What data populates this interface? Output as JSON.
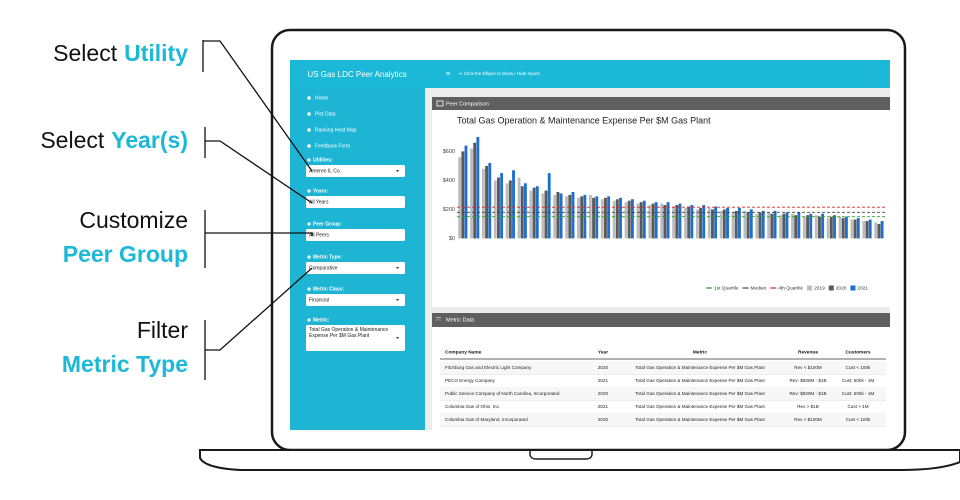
{
  "annotations": [
    {
      "label": "Select",
      "highlight": "Utility"
    },
    {
      "label": "Select",
      "highlight": "Year(s)"
    },
    {
      "label": "Customize",
      "highlight": "Peer Group"
    },
    {
      "label": "Filter",
      "highlight": "Metric Type"
    }
  ],
  "app": {
    "title": "US Gas LDC Peer Analytics",
    "menu_icon": "≡",
    "hint": "⇐ Click the Ellipse to Show / Hide Inputs",
    "nav": [
      "Home",
      "Plot Data",
      "Ranking Heat Map",
      "Feedback Form"
    ],
    "filters": [
      {
        "label": "Utilities:",
        "value": "Ameren IL Co."
      },
      {
        "label": "Years:",
        "value": "All Years"
      },
      {
        "label": "Peer Group:",
        "value": "All Peers"
      },
      {
        "label": "Metric Type:",
        "value": "Comparative"
      },
      {
        "label": "Metric Class:",
        "value": "Financial"
      },
      {
        "label": "Metric:",
        "value": "Total Gas Operation & Maintenance Expense Per $M Gas Plant"
      }
    ],
    "chart_panel_title": "Peer Comparison",
    "table_panel_title": "Metric Data"
  },
  "chart_data": {
    "type": "bar",
    "title": "Total Gas Operation & Maintenance Expense Per $M Gas Plant",
    "categories": [
      null,
      null,
      null,
      null,
      null,
      null,
      null,
      null,
      null,
      null,
      null,
      null,
      null,
      null,
      null,
      null,
      null,
      null,
      null,
      null,
      null,
      null,
      null,
      null,
      null,
      null,
      null,
      null,
      null,
      null,
      null,
      null,
      null,
      null,
      null,
      null
    ],
    "series": [
      {
        "name": "2019",
        "color": "#bdbdbd",
        "values": [
          560,
          620,
          480,
          400,
          380,
          420,
          330,
          310,
          300,
          290,
          280,
          300,
          270,
          260,
          250,
          240,
          230,
          240,
          220,
          210,
          200,
          210,
          190,
          180,
          190,
          170,
          180,
          160,
          170,
          150,
          160,
          140,
          150,
          130,
          120,
          110
        ]
      },
      {
        "name": "2020",
        "color": "#5a5a5a",
        "values": [
          600,
          660,
          500,
          420,
          400,
          360,
          350,
          330,
          320,
          300,
          290,
          280,
          280,
          270,
          260,
          250,
          240,
          230,
          230,
          220,
          210,
          200,
          200,
          190,
          180,
          180,
          170,
          170,
          160,
          160,
          150,
          150,
          140,
          130,
          120,
          100
        ]
      },
      {
        "name": "2021",
        "color": "#1e6fd0",
        "values": [
          640,
          700,
          520,
          450,
          470,
          380,
          360,
          450,
          310,
          320,
          300,
          290,
          290,
          280,
          270,
          260,
          250,
          250,
          240,
          230,
          230,
          220,
          210,
          210,
          200,
          190,
          190,
          180,
          180,
          170,
          170,
          160,
          150,
          140,
          130,
          120
        ]
      }
    ],
    "reference_lines": [
      {
        "name": "1st Quartile",
        "value": 150,
        "color": "#2ca02c"
      },
      {
        "name": "Median",
        "value": 180,
        "color": "#444444"
      },
      {
        "name": "4th Quartile",
        "value": 215,
        "color": "#d62728"
      }
    ],
    "ylim": [
      -80,
      720
    ],
    "yticks": [
      {
        "value": 0,
        "label": "$0"
      },
      {
        "value": 200,
        "label": "$200"
      },
      {
        "value": 400,
        "label": "$400"
      },
      {
        "value": 600,
        "label": "$600"
      }
    ],
    "grid": false
  },
  "table": {
    "columns": [
      "Company Name",
      "Year",
      "Metric",
      "Revenue",
      "Customers"
    ],
    "rows": [
      [
        "Fitchburg Gas and Electric Light Company",
        "2020",
        "Total Gas Operation & Maintenance Expense Per $M Gas Plant",
        "Rev < $100M",
        "Cust < 100k"
      ],
      [
        "PECO Energy Company",
        "2021",
        "Total Gas Operation & Maintenance Expense Per $M Gas Plant",
        "Rev: $500M - $1B",
        "Cust: 500k - 1M"
      ],
      [
        "Public Service Company of North Carolina, Incorporated",
        "2020",
        "Total Gas Operation & Maintenance Expense Per $M Gas Plant",
        "Rev: $500M - $1B",
        "Cust: 500k - 1M"
      ],
      [
        "Columbia Gas of Ohio, Inc.",
        "2021",
        "Total Gas Operation & Maintenance Expense Per $M Gas Plant",
        "Rev > $1B",
        "Cust > 1M"
      ],
      [
        "Columbia Gas of Maryland, Incorporated",
        "2020",
        "Total Gas Operation & Maintenance Expense Per $M Gas Plant",
        "Rev < $100M",
        "Cust < 100k"
      ]
    ]
  }
}
